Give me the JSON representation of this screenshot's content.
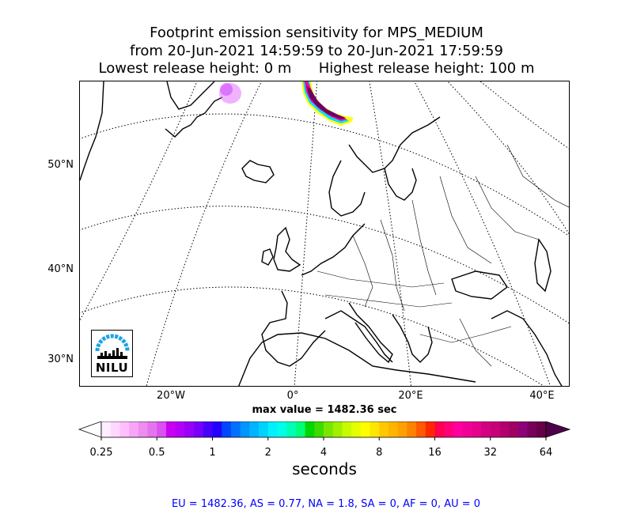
{
  "title": {
    "line1": "Footprint emission sensitivity for MPS_MEDIUM",
    "line2": "from 20-Jun-2021 14:59:59 to 20-Jun-2021 17:59:59",
    "line3": "Lowest release height: 0 m      Highest release height: 100 m"
  },
  "map": {
    "lat_labels": [
      "50°N",
      "40°N",
      "30°N"
    ],
    "lon_labels": [
      "20°W",
      "0°",
      "20°E",
      "40°E"
    ],
    "gridlines": "dotted",
    "logo_text": "NILU"
  },
  "max_value_text": "max value = 1482.36 sec",
  "colorbar": {
    "ticks": [
      "0.25",
      "0.5",
      "1",
      "2",
      "4",
      "8",
      "16",
      "32",
      "64"
    ],
    "label": "seconds",
    "colors": [
      "#ffeeff",
      "#ffd8ff",
      "#ffbfff",
      "#f7a6f7",
      "#ef8cf0",
      "#e474ee",
      "#dd4ff2",
      "#c800f4",
      "#b400f6",
      "#9800f8",
      "#7700fb",
      "#4800fd",
      "#2400ff",
      "#0046ff",
      "#0070ff",
      "#0096ff",
      "#00b4ff",
      "#00d2ff",
      "#00f0ff",
      "#00ffe6",
      "#00ffb4",
      "#00ff78",
      "#00d700",
      "#3cdc00",
      "#78e600",
      "#a0f000",
      "#c8fa00",
      "#e6ff00",
      "#ffff00",
      "#ffe600",
      "#ffc800",
      "#ffb400",
      "#ffa000",
      "#ff8200",
      "#ff5a00",
      "#ff2800",
      "#ff0050",
      "#ff0078",
      "#ff00a0",
      "#f00096",
      "#e6008c",
      "#d20082",
      "#c80078",
      "#b4006e",
      "#a00064",
      "#8c0078",
      "#78005a",
      "#640046"
    ],
    "under_color": "#ffffff",
    "over_color": "#50004a"
  },
  "footer": "EU = 1482.36,  AS = 0.77,  NA = 1.8,  SA = 0,  AF = 0,  AU = 0"
}
